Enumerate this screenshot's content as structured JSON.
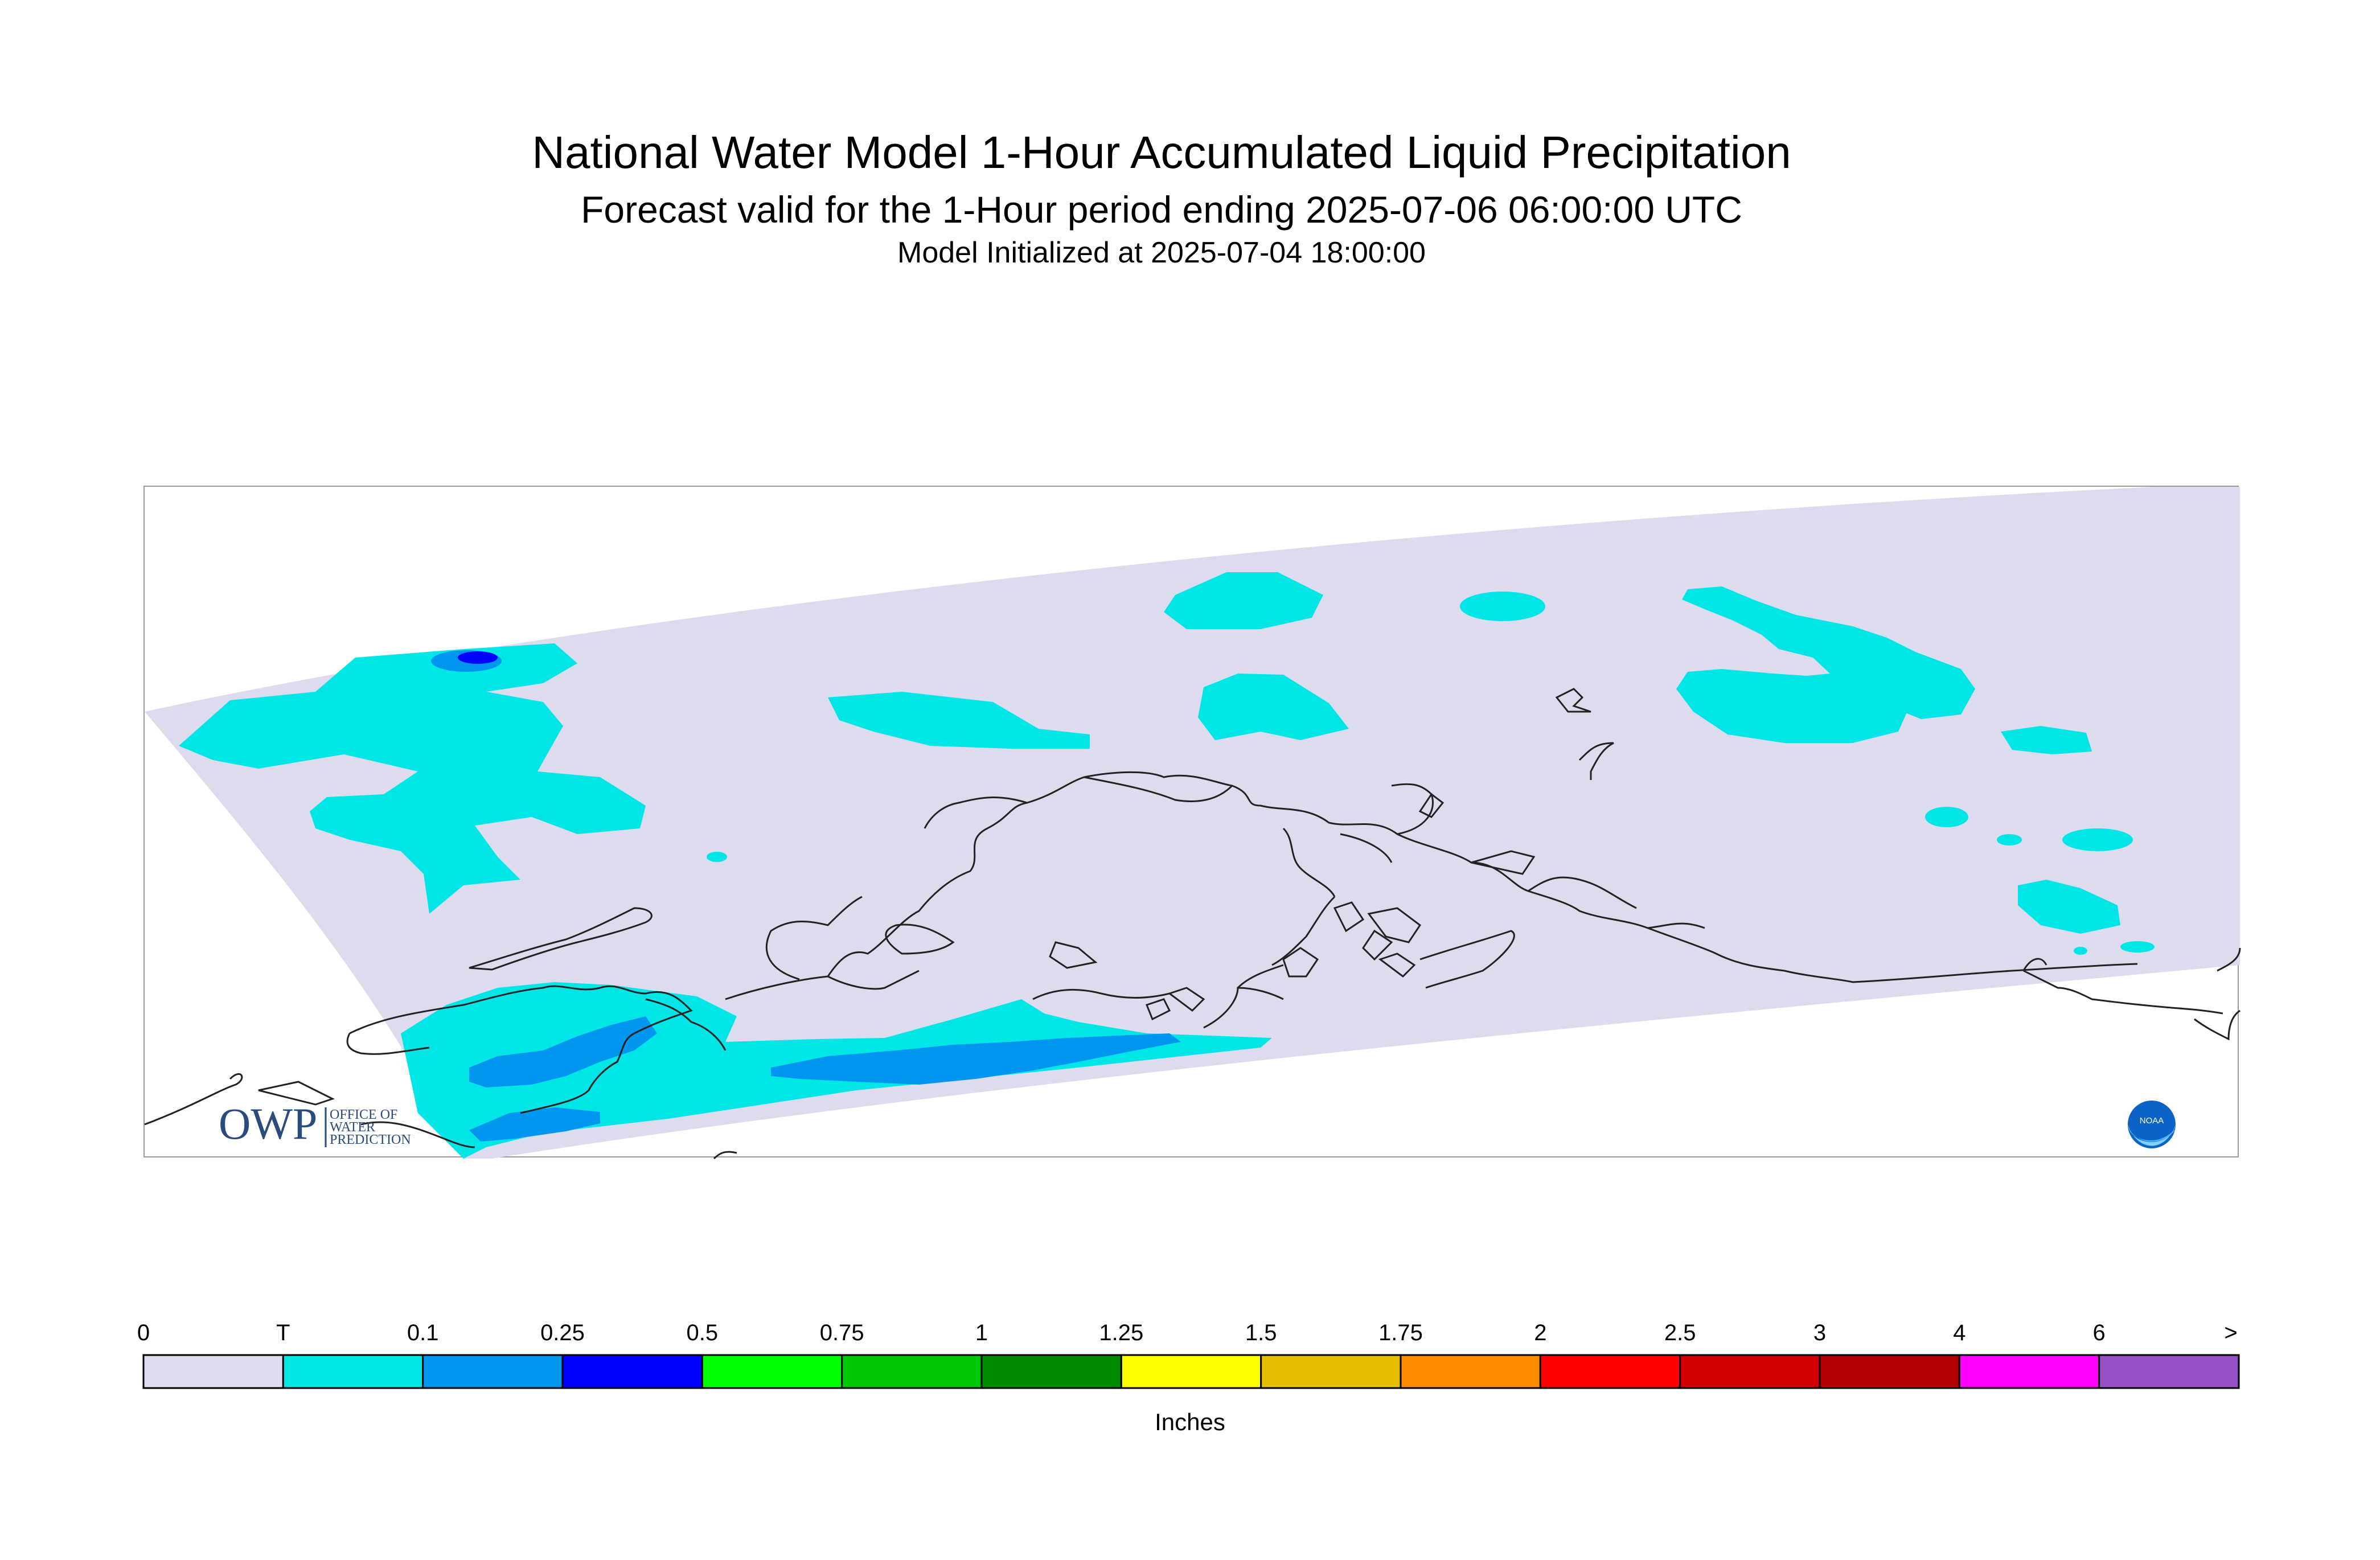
{
  "title": "National Water Model 1-Hour Accumulated Liquid Precipitation",
  "subtitle": "Forecast valid for the 1-Hour period ending 2025-07-06 06:00:00 UTC",
  "init_text": "Model Initialized at 2025-07-04 18:00:00",
  "logos": {
    "owp_mark": "OWP",
    "owp_text": [
      "OFFICE OF",
      "WATER",
      "PREDICTION"
    ],
    "noaa_text": "NOAA"
  },
  "legend": {
    "units": "Inches",
    "tick_labels": [
      "0",
      "T",
      "0.1",
      "0.25",
      "0.5",
      "0.75",
      "1",
      "1.25",
      "1.5",
      "1.75",
      "2",
      "2.5",
      "3",
      "4",
      "6",
      ">"
    ],
    "colors": [
      "#dcdcee",
      "#00e6e6",
      "#0096f0",
      "#0000ff",
      "#00ff00",
      "#00c800",
      "#008c00",
      "#ffff00",
      "#e6be00",
      "#ff8c00",
      "#ff0000",
      "#d20000",
      "#b40000",
      "#ff00ff",
      "#9650c8"
    ]
  },
  "map": {
    "domain_color": "#dcdcee",
    "coast_color": "#222222"
  }
}
